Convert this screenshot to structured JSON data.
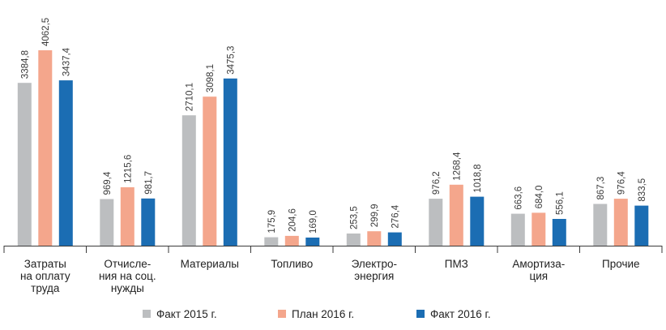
{
  "chart_data": {
    "type": "bar",
    "categories": [
      [
        "Затраты",
        "на оплату",
        "труда"
      ],
      [
        "Отчисле-",
        "ния на соц.",
        "нужды"
      ],
      [
        "Материалы"
      ],
      [
        "Топливо"
      ],
      [
        "Электро-",
        "энергия"
      ],
      [
        "ПМЗ"
      ],
      [
        "Амортиза-",
        "ция"
      ],
      [
        "Прочие"
      ]
    ],
    "series": [
      {
        "name": "Факт 2015 г.",
        "color": "#bcbec0",
        "values": [
          3384.8,
          969.4,
          2710.1,
          175.9,
          253.5,
          976.2,
          663.6,
          867.3
        ],
        "labels": [
          "3384,8",
          "969,4",
          "2710,1",
          "175,9",
          "253,5",
          "976,2",
          "663,6",
          "867,3"
        ]
      },
      {
        "name": "План 2016 г.",
        "color": "#f4a68c",
        "values": [
          4062.5,
          1215.6,
          3098.1,
          204.6,
          299.9,
          1268.4,
          684.0,
          976.4
        ],
        "labels": [
          "4062,5",
          "1215,6",
          "3098,1",
          "204,6",
          "299,9",
          "1268,4",
          "684,0",
          "976,4"
        ]
      },
      {
        "name": "Факт 2016 г.",
        "color": "#1b6db3",
        "values": [
          3437.4,
          981.7,
          3475.3,
          169.0,
          276.4,
          1018.8,
          556.1,
          833.5
        ],
        "labels": [
          "3437,4",
          "981,7",
          "3475,3",
          "169,0",
          "276,4",
          "1018,8",
          "556,1",
          "833,5"
        ]
      }
    ],
    "ylim": [
      0,
      4062.5
    ],
    "grid": false,
    "legend": "bottom"
  }
}
